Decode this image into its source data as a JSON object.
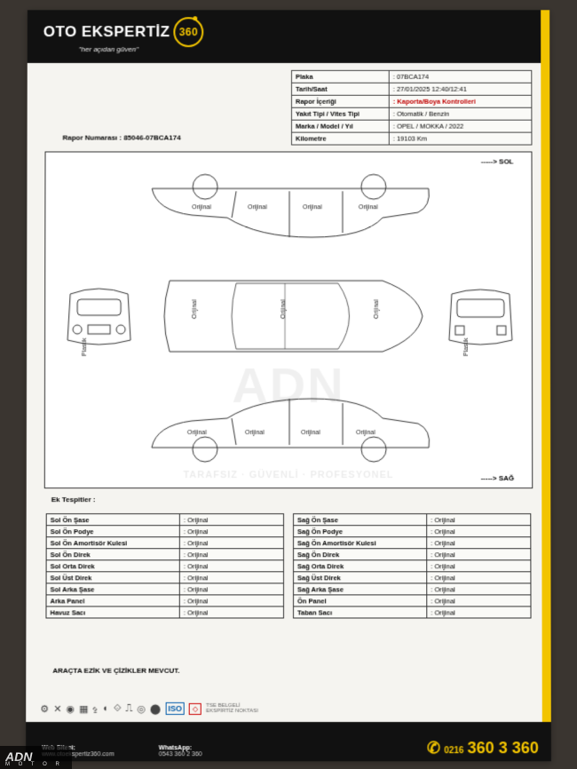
{
  "logo": {
    "brand": "OTO EKSPERTİZ",
    "badge": "360",
    "tagline": "\"her açıdan güven\""
  },
  "header_rows": [
    {
      "k": "Plaka",
      "v": ": 07BCA174"
    },
    {
      "k": "Tarih/Saat",
      "v": ": 27/01/2025  12:40/12:41"
    },
    {
      "k": "Rapor İçeriği",
      "v": ": Kaporta/Boya Kontrolleri",
      "red": true
    },
    {
      "k": "Yakıt Tipi / Vites Tipi",
      "v": ": Otomatik / Benzin"
    },
    {
      "k": "Marka / Model / Yıl",
      "v": ": OPEL / MOKKA / 2022"
    },
    {
      "k": "Kilometre",
      "v": ": 19103 Km"
    }
  ],
  "report_no": {
    "label": "Rapor Numarası :",
    "value": "85046-07BCA174"
  },
  "arrows": {
    "sol": "-----> SOL",
    "sag": "-----> SAĞ"
  },
  "car_labels": {
    "top_row": [
      "Orijinal",
      "Orijinal",
      "Orijinal",
      "Orijinal"
    ],
    "mid_row": [
      "Orijinal",
      "Orijinal",
      "Orijinal"
    ],
    "bot_row": [
      "Orijinal",
      "Orijinal",
      "Orijinal",
      "Orijinal"
    ],
    "front_bumper": "Plastik",
    "rear_bumper": "Plastik"
  },
  "ek_tesp": "Ek Tespitler :",
  "findings_left": [
    [
      "Sol Ön Şase",
      ": Orijinal"
    ],
    [
      "Sol Ön Podye",
      ": Orijinal"
    ],
    [
      "Sol Ön Amortisör Kulesi",
      ": Orijinal"
    ],
    [
      "Sol Ön Direk",
      ": Orijinal"
    ],
    [
      "Sol Orta Direk",
      ": Orijinal"
    ],
    [
      "Sol Üst Direk",
      ": Orijinal"
    ],
    [
      "Sol Arka Şase",
      ": Orijinal"
    ],
    [
      "Arka Panel",
      ": Orijinal"
    ],
    [
      "Havuz Sacı",
      ": Orijinal"
    ]
  ],
  "findings_right": [
    [
      "Sağ Ön Şase",
      ": Orijinal"
    ],
    [
      "Sağ Ön Podye",
      ": Orijinal"
    ],
    [
      "Sağ Ön Amortisör Kulesi",
      ": Orijinal"
    ],
    [
      "Sağ Ön Direk",
      ": Orijinal"
    ],
    [
      "Sağ Orta Direk",
      ": Orijinal"
    ],
    [
      "Sağ Üst Direk",
      ": Orijinal"
    ],
    [
      "Sağ Arka Şase",
      ": Orijinal"
    ],
    [
      "Ön Panel",
      ": Orijinal"
    ],
    [
      "Taban Sacı",
      ": Orijinal"
    ]
  ],
  "note": "ARAÇTA EZİK VE ÇİZİKLER MEVCUT.",
  "footer": {
    "web_label": "Web Sitesi:",
    "web": "www.otoekspertiz360.com",
    "wa_label": "WhatsApp:",
    "wa": "0543 360 2 360",
    "phone_pre": "0216",
    "phone": "360 3 360"
  },
  "watermark": "ADN",
  "watermark_sub": "TARAFSIZ · GÜVENLİ · PROFESYONEL",
  "corner": {
    "main": "ADN",
    "sub": "M O T O R"
  },
  "colors": {
    "accent": "#f2c400",
    "bar": "#111111",
    "paper": "#f5f4f0",
    "red": "#c00000"
  }
}
